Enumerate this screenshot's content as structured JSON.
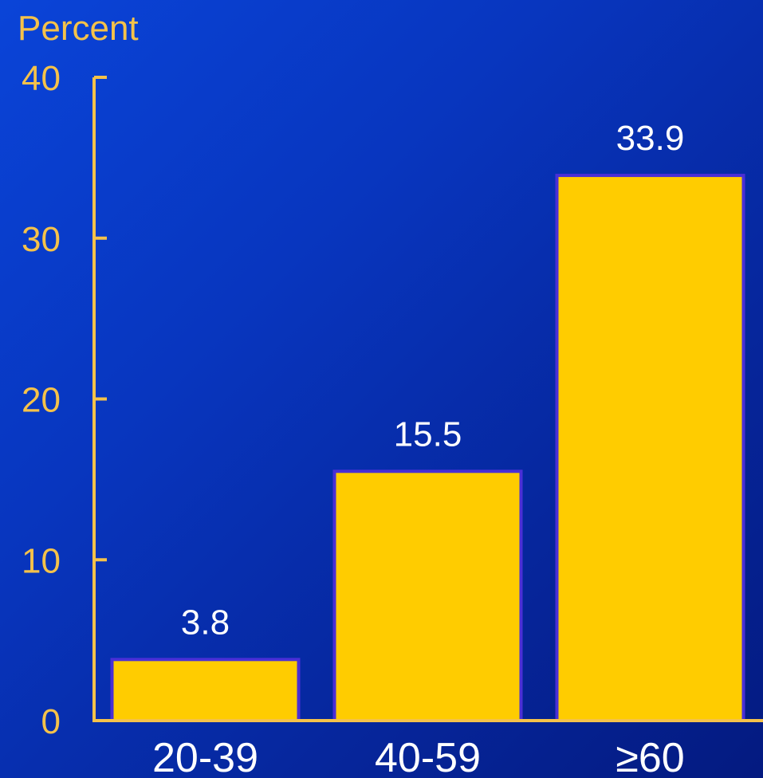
{
  "chart_data": {
    "type": "bar",
    "ylabel": "Percent",
    "categories": [
      "20-39",
      "40-59",
      "≥60"
    ],
    "values": [
      3.8,
      15.5,
      33.9
    ],
    "value_labels": [
      "3.8",
      "15.5",
      "33.9"
    ],
    "ylim": [
      0,
      40
    ],
    "yticks": [
      0,
      10,
      20,
      30,
      40
    ],
    "grid": false
  },
  "colors": {
    "bar_fill": "#ffcc00",
    "bar_stroke": "#4a2fd6",
    "axis": "#f5c24a",
    "axis_text": "#f5c24a",
    "category_text": "#ffffff",
    "value_text": "#ffffff"
  }
}
